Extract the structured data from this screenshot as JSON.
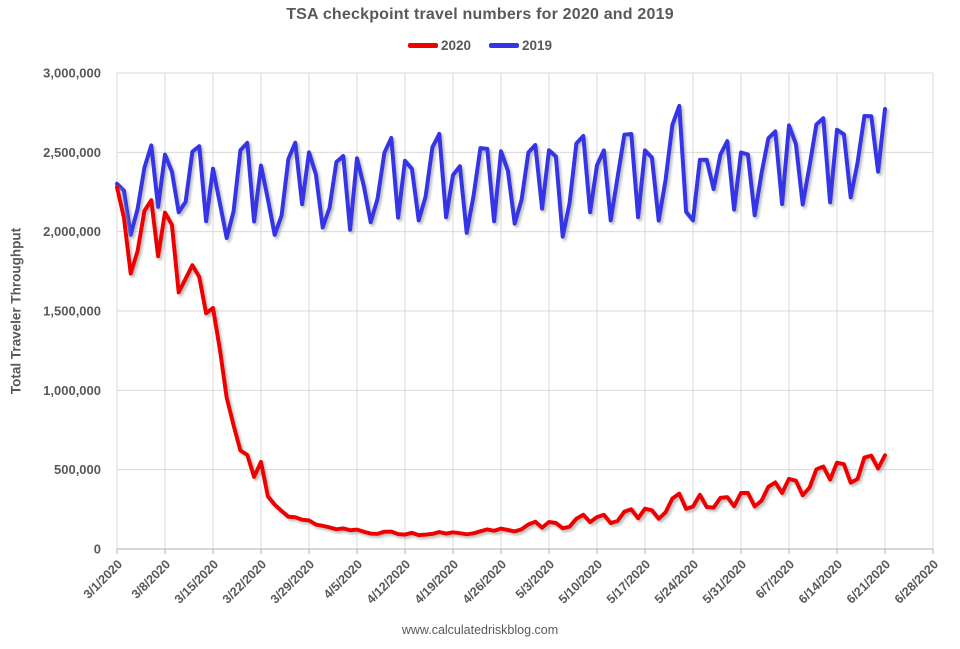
{
  "chart_data": {
    "type": "line",
    "title": "TSA checkpoint travel numbers for 2020 and 2019",
    "xlabel": "",
    "ylabel": "Total Traveler Throughput",
    "footer": "www.calculatedriskblog.com",
    "ylim": [
      0,
      3000000
    ],
    "ytick_values": [
      0,
      500000,
      1000000,
      1500000,
      2000000,
      2500000,
      3000000
    ],
    "ytick_labels": [
      "0",
      "500,000",
      "1,000,000",
      "1,500,000",
      "2,000,000",
      "2,500,000",
      "3,000,000"
    ],
    "xtick_labels": [
      "3/1/2020",
      "3/8/2020",
      "3/15/2020",
      "3/22/2020",
      "3/29/2020",
      "4/5/2020",
      "4/12/2020",
      "4/19/2020",
      "4/26/2020",
      "5/3/2020",
      "5/10/2020",
      "5/17/2020",
      "5/24/2020",
      "5/31/2020",
      "6/7/2020",
      "6/14/2020",
      "6/21/2020",
      "6/28/2020"
    ],
    "xtick_interval_days": 7,
    "x_span_days": 119,
    "grid": true,
    "legend_position": "top",
    "colors": {
      "grid": "#d9d9d9",
      "axis": "#bfbfbf",
      "text": "#595959"
    },
    "dates": [
      "3/1/2020",
      "3/2/2020",
      "3/3/2020",
      "3/4/2020",
      "3/5/2020",
      "3/6/2020",
      "3/7/2020",
      "3/8/2020",
      "3/9/2020",
      "3/10/2020",
      "3/11/2020",
      "3/12/2020",
      "3/13/2020",
      "3/14/2020",
      "3/15/2020",
      "3/16/2020",
      "3/17/2020",
      "3/18/2020",
      "3/19/2020",
      "3/20/2020",
      "3/21/2020",
      "3/22/2020",
      "3/23/2020",
      "3/24/2020",
      "3/25/2020",
      "3/26/2020",
      "3/27/2020",
      "3/28/2020",
      "3/29/2020",
      "3/30/2020",
      "3/31/2020",
      "4/1/2020",
      "4/2/2020",
      "4/3/2020",
      "4/4/2020",
      "4/5/2020",
      "4/6/2020",
      "4/7/2020",
      "4/8/2020",
      "4/9/2020",
      "4/10/2020",
      "4/11/2020",
      "4/12/2020",
      "4/13/2020",
      "4/14/2020",
      "4/15/2020",
      "4/16/2020",
      "4/17/2020",
      "4/18/2020",
      "4/19/2020",
      "4/20/2020",
      "4/21/2020",
      "4/22/2020",
      "4/23/2020",
      "4/24/2020",
      "4/25/2020",
      "4/26/2020",
      "4/27/2020",
      "4/28/2020",
      "4/29/2020",
      "4/30/2020",
      "5/1/2020",
      "5/2/2020",
      "5/3/2020",
      "5/4/2020",
      "5/5/2020",
      "5/6/2020",
      "5/7/2020",
      "5/8/2020",
      "5/9/2020",
      "5/10/2020",
      "5/11/2020",
      "5/12/2020",
      "5/13/2020",
      "5/14/2020",
      "5/15/2020",
      "5/16/2020",
      "5/17/2020",
      "5/18/2020",
      "5/19/2020",
      "5/20/2020",
      "5/21/2020",
      "5/22/2020",
      "5/23/2020",
      "5/24/2020",
      "5/25/2020",
      "5/26/2020",
      "5/27/2020",
      "5/28/2020",
      "5/29/2020",
      "5/30/2020",
      "5/31/2020",
      "6/1/2020",
      "6/2/2020",
      "6/3/2020",
      "6/4/2020",
      "6/5/2020",
      "6/6/2020",
      "6/7/2020",
      "6/8/2020",
      "6/9/2020",
      "6/10/2020",
      "6/11/2020",
      "6/12/2020",
      "6/13/2020",
      "6/14/2020",
      "6/15/2020",
      "6/16/2020",
      "6/17/2020",
      "6/18/2020",
      "6/19/2020",
      "6/20/2020",
      "6/21/2020"
    ],
    "series": [
      {
        "name": "2020",
        "color": "#ee0202",
        "values": [
          2280522,
          2089641,
          1736393,
          1877401,
          2130015,
          2198517,
          1844811,
          2119867,
          2044043,
          1617220,
          1702686,
          1788456,
          1714372,
          1485553,
          1519192,
          1257823,
          953699,
          779631,
          620883,
          593167,
          454516,
          548132,
          331431,
          279018,
          239234,
          203858,
          199644,
          184027,
          180002,
          154080,
          146348,
          136023,
          124021,
          129763,
          118302,
          122029,
          108310,
          97130,
          94931,
          108977,
          109377,
          93645,
          90510,
          102184,
          87534,
          90784,
          95085,
          106385,
          97236,
          105382,
          99344,
          92859,
          98968,
          111627,
          123464,
          114459,
          128875,
          119629,
          110913,
          124083,
          154695,
          171563,
          134261,
          170254,
          163692,
          130601,
          140409,
          190863,
          215444,
          169580,
          200815,
          215645,
          163205,
          176667,
          234928,
          250467,
          193340,
          253807,
          244176,
          190477,
          230367,
          318449,
          348673,
          253190,
          267451,
          340769,
          264843,
          261170,
          321776,
          327133,
          268867,
          352947,
          353261,
          267742,
          304436,
          391882,
          419675,
          353016,
          441829,
          430414,
          338382,
          386969,
          502209,
          519304,
          437119,
          544046,
          534528,
          417924,
          441255,
          576514,
          587908,
          507129,
          590456
        ]
      },
      {
        "name": "2019",
        "color": "#3535e6",
        "values": [
          2301439,
          2257920,
          1979558,
          2143619,
          2402692,
          2543689,
          2156262,
          2485430,
          2378673,
          2122898,
          2187568,
          2503924,
          2538384,
          2065867,
          2396681,
          2177929,
          1960325,
          2129276,
          2513231,
          2559307,
          2064153,
          2416946,
          2203902,
          1979489,
          2102068,
          2458113,
          2560425,
          2172920,
          2499461,
          2360053,
          2026256,
          2151626,
          2438846,
          2476884,
          2011715,
          2462929,
          2285213,
          2059142,
          2208688,
          2497103,
          2590499,
          2088760,
          2446801,
          2396401,
          2070716,
          2221021,
          2531435,
          2616158,
          2091056,
          2356802,
          2412770,
          1992936,
          2227475,
          2526961,
          2521897,
          2065224,
          2506809,
          2384091,
          2050863,
          2201293,
          2499001,
          2546029,
          2145580,
          2512598,
          2473583,
          1968815,
          2181272,
          2555578,
          2602631,
          2122774,
          2419114,
          2512315,
          2071068,
          2343675,
          2611324,
          2615691,
          2091116,
          2512237,
          2466574,
          2070570,
          2327133,
          2673635,
          2792670,
          2124825,
          2070716,
          2452610,
          2453649,
          2269035,
          2485770,
          2570613,
          2139376,
          2499002,
          2486974,
          2102862,
          2370152,
          2588282,
          2631624,
          2173618,
          2669860,
          2552395,
          2171444,
          2415523,
          2675686,
          2715382,
          2184253,
          2642083,
          2613878,
          2215732,
          2436110,
          2728786,
          2727860,
          2378559,
          2772903
        ]
      }
    ]
  }
}
